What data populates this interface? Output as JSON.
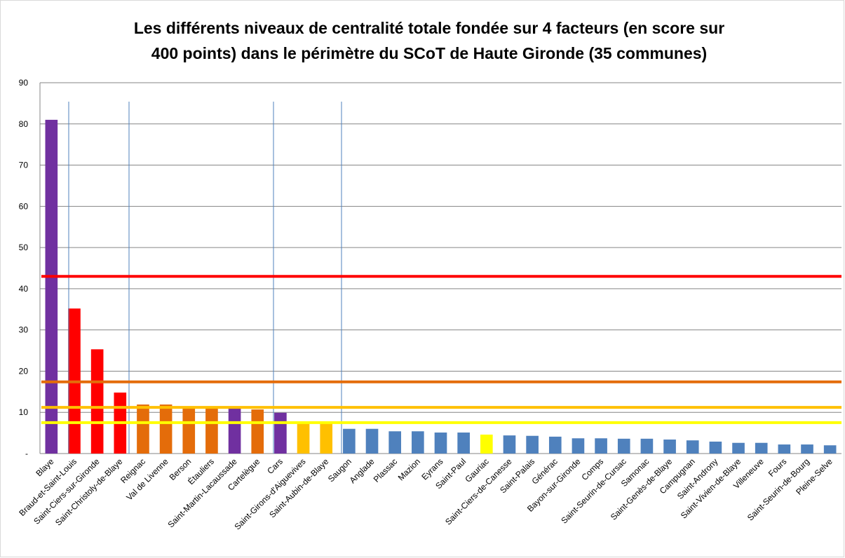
{
  "chart_data": {
    "type": "bar",
    "title": [
      "Les différents niveaux de centralité totale fondée sur 4 facteurs (en score sur",
      "400 points) dans le périmètre du SCoT de Haute Gironde (35 communes)"
    ],
    "categories": [
      "Blaye",
      "Braud-et-Saint-Louis",
      "Saint-Ciers-sur-Gironde",
      "Saint-Christoly-de-Blaye",
      "Reignac",
      "Val de Livenne",
      "Berson",
      "Étauliers",
      "Saint-Martin-Lacaussade",
      "Cartelègue",
      "Cars",
      "Saint-Girons-d'Aiguevives",
      "Saint-Aubin-de-Blaye",
      "Saugon",
      "Anglade",
      "Plassac",
      "Mazion",
      "Eyrans",
      "Saint-Paul",
      "Gauriac",
      "Saint-Ciers-de-Canesse",
      "Saint-Palais",
      "Générac",
      "Bayon-sur-Gironde",
      "Comps",
      "Saint-Seurin-de-Cursac",
      "Samonac",
      "Saint-Genès-de-Blaye",
      "Campugnan",
      "Saint-Androny",
      "Saint-Vivien-de-Blaye",
      "Villeneuve",
      "Fours",
      "Saint-Seurin-de-Bourg",
      "Pleine-Selve"
    ],
    "values": [
      81,
      35.2,
      25.3,
      14.8,
      11.9,
      11.9,
      11.4,
      11.4,
      10.9,
      10.7,
      9.9,
      7.8,
      7.7,
      6.0,
      6.0,
      5.4,
      5.4,
      5.1,
      5.1,
      4.6,
      4.4,
      4.3,
      4.1,
      3.7,
      3.7,
      3.6,
      3.6,
      3.4,
      3.2,
      2.9,
      2.6,
      2.6,
      2.2,
      2.2,
      2.0
    ],
    "colors": [
      "#7030a0",
      "#ff0000",
      "#ff0000",
      "#ff0000",
      "#e46c0a",
      "#e46c0a",
      "#e46c0a",
      "#e46c0a",
      "#7030a0",
      "#e46c0a",
      "#7030a0",
      "#ffc000",
      "#ffc000",
      "#4f81bd",
      "#4f81bd",
      "#4f81bd",
      "#4f81bd",
      "#4f81bd",
      "#4f81bd",
      "#ffff00",
      "#4f81bd",
      "#4f81bd",
      "#4f81bd",
      "#4f81bd",
      "#4f81bd",
      "#4f81bd",
      "#4f81bd",
      "#4f81bd",
      "#4f81bd",
      "#4f81bd",
      "#4f81bd",
      "#4f81bd",
      "#4f81bd",
      "#4f81bd",
      "#4f81bd"
    ],
    "reference_lines": [
      {
        "value": 43,
        "color": "#ff0000"
      },
      {
        "value": 17.4,
        "color": "#e46c0a"
      },
      {
        "value": 11.2,
        "color": "#ffc000"
      },
      {
        "value": 7.5,
        "color": "#ffff00"
      }
    ],
    "ylim": [
      0,
      90
    ],
    "yticks": [
      {
        "value": 0,
        "label": "-"
      },
      10,
      20,
      30,
      40,
      50,
      60,
      70,
      80,
      90
    ],
    "grid": true
  }
}
